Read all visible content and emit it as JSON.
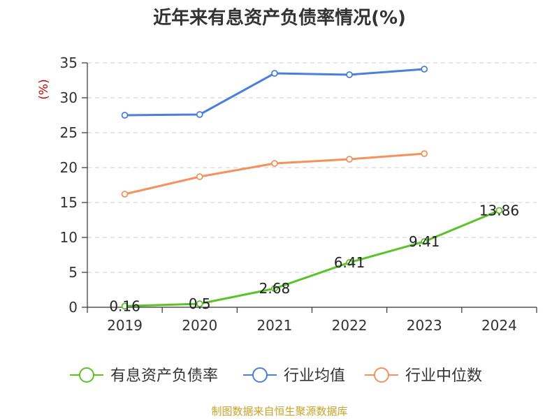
{
  "chart_data": {
    "type": "line",
    "title": "近年来有息资产负债率情况(%)",
    "unit_label": "(%)",
    "categories": [
      "2019",
      "2020",
      "2021",
      "2022",
      "2023",
      "2024"
    ],
    "ylim": [
      0,
      35
    ],
    "yticks": [
      0,
      5,
      10,
      15,
      20,
      25,
      30,
      35
    ],
    "grid": true,
    "legend_position": "bottom",
    "series": [
      {
        "name": "有息资产负债率",
        "color": "#5cc22a",
        "values": [
          0.16,
          0.5,
          2.68,
          6.41,
          9.41,
          13.86
        ],
        "labels": [
          "0.16",
          "0.5",
          "2.68",
          "6.41",
          "9.41",
          "13.86"
        ]
      },
      {
        "name": "行业均值",
        "color": "#4a7fdb",
        "values": [
          27.5,
          27.6,
          33.5,
          33.3,
          34.1,
          null
        ],
        "labels": null
      },
      {
        "name": "行业中位数",
        "color": "#f5915d",
        "values": [
          16.2,
          18.7,
          20.6,
          21.2,
          22.0,
          null
        ],
        "labels": null
      }
    ],
    "source": "制图数据来自恒生聚源数据库"
  }
}
